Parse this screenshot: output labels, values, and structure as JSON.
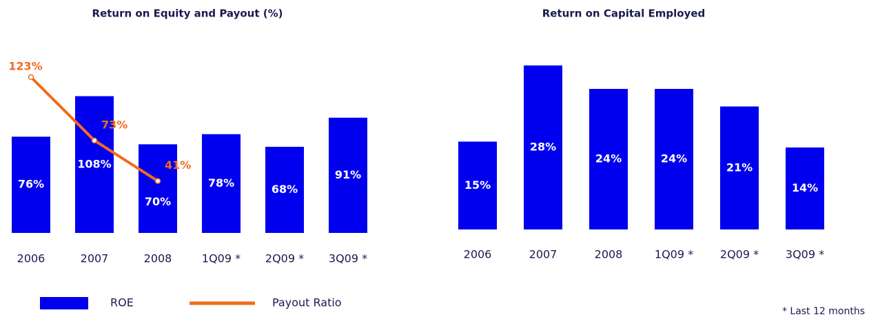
{
  "chart_data": [
    {
      "type": "bar",
      "title": "Return on Equity and Payout (%)",
      "categories": [
        "2006",
        "2007",
        "2008",
        "1Q09 *",
        "2Q09 *",
        "3Q09 *"
      ],
      "series": [
        {
          "name": "ROE",
          "type": "bar",
          "color": "#0000ee",
          "values": [
            76,
            108,
            70,
            78,
            68,
            91
          ],
          "value_labels": [
            "76%",
            "108%",
            "70%",
            "78%",
            "68%",
            "91%"
          ]
        },
        {
          "name": "Payout Ratio",
          "type": "line",
          "color": "#f26b1d",
          "values": [
            123,
            73,
            41,
            null,
            null,
            null
          ],
          "value_labels": [
            "123%",
            "73%",
            "41%",
            null,
            null,
            null
          ]
        }
      ],
      "ylim": [
        0,
        160
      ],
      "legend": "bottom"
    },
    {
      "type": "bar",
      "title": "Return on Capital Employed",
      "categories": [
        "2006",
        "2007",
        "2008",
        "1Q09 *",
        "2Q09 *",
        "3Q09 *"
      ],
      "values": [
        15,
        28,
        24,
        24,
        21,
        14
      ],
      "value_labels": [
        "15%",
        "28%",
        "24%",
        "24%",
        "21%",
        "14%"
      ],
      "color": "#0000ee",
      "ylim": [
        0,
        30
      ]
    }
  ],
  "footnote": "* Last 12 months"
}
